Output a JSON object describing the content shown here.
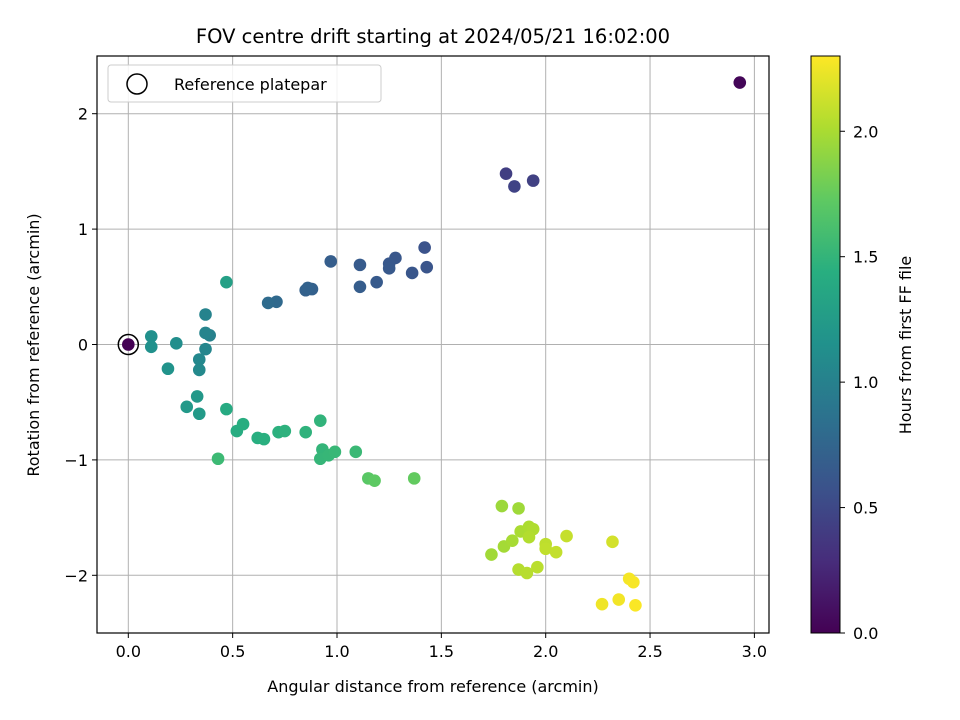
{
  "chart_data": {
    "type": "scatter",
    "title": "FOV centre drift starting at 2024/05/21 16:02:00",
    "xlabel": "Angular distance from reference (arcmin)",
    "ylabel": "Rotation from reference (arcmin)",
    "xlim": [
      -0.15,
      3.07
    ],
    "ylim": [
      -2.5,
      2.5
    ],
    "xticks": [
      0.0,
      0.5,
      1.0,
      1.5,
      2.0,
      2.5,
      3.0
    ],
    "xtick_labels": [
      "0.0",
      "0.5",
      "1.0",
      "1.5",
      "2.0",
      "2.5",
      "3.0"
    ],
    "yticks": [
      -2,
      -1,
      0,
      1,
      2
    ],
    "ytick_labels": [
      "−2",
      "−1",
      "0",
      "1",
      "2"
    ],
    "grid": true,
    "legend": {
      "location": "upper-left",
      "entries": [
        "Reference platepar"
      ]
    },
    "reference_point": {
      "x": 0.0,
      "y": 0.0
    },
    "colorbar": {
      "label": "Hours from first FF file",
      "range": [
        0.0,
        2.3
      ],
      "ticks": [
        0.0,
        0.5,
        1.0,
        1.5,
        2.0
      ],
      "tick_labels": [
        "0.0",
        "0.5",
        "1.0",
        "1.5",
        "2.0"
      ],
      "colormap": "viridis"
    },
    "points": [
      {
        "x": 0.0,
        "y": 0.0,
        "c": 0.0
      },
      {
        "x": 2.93,
        "y": 2.27,
        "c": 0.03
      },
      {
        "x": 1.81,
        "y": 1.48,
        "c": 0.42
      },
      {
        "x": 1.94,
        "y": 1.42,
        "c": 0.44
      },
      {
        "x": 1.85,
        "y": 1.37,
        "c": 0.46
      },
      {
        "x": 1.42,
        "y": 0.84,
        "c": 0.58
      },
      {
        "x": 1.43,
        "y": 0.67,
        "c": 0.6
      },
      {
        "x": 1.36,
        "y": 0.62,
        "c": 0.61
      },
      {
        "x": 1.28,
        "y": 0.75,
        "c": 0.62
      },
      {
        "x": 1.25,
        "y": 0.7,
        "c": 0.63
      },
      {
        "x": 1.25,
        "y": 0.66,
        "c": 0.64
      },
      {
        "x": 1.19,
        "y": 0.54,
        "c": 0.65
      },
      {
        "x": 1.11,
        "y": 0.69,
        "c": 0.66
      },
      {
        "x": 1.11,
        "y": 0.5,
        "c": 0.67
      },
      {
        "x": 0.97,
        "y": 0.72,
        "c": 0.68
      },
      {
        "x": 0.88,
        "y": 0.48,
        "c": 0.7
      },
      {
        "x": 0.85,
        "y": 0.47,
        "c": 0.71
      },
      {
        "x": 0.86,
        "y": 0.49,
        "c": 0.72
      },
      {
        "x": 0.71,
        "y": 0.37,
        "c": 0.78
      },
      {
        "x": 0.67,
        "y": 0.36,
        "c": 0.8
      },
      {
        "x": 0.39,
        "y": 0.08,
        "c": 1.0
      },
      {
        "x": 0.37,
        "y": 0.26,
        "c": 1.02
      },
      {
        "x": 0.37,
        "y": 0.1,
        "c": 1.03
      },
      {
        "x": 0.37,
        "y": -0.04,
        "c": 1.05
      },
      {
        "x": 0.34,
        "y": -0.13,
        "c": 1.07
      },
      {
        "x": 0.34,
        "y": -0.22,
        "c": 1.08
      },
      {
        "x": 0.23,
        "y": 0.01,
        "c": 1.12
      },
      {
        "x": 0.11,
        "y": 0.07,
        "c": 1.14
      },
      {
        "x": 0.11,
        "y": -0.02,
        "c": 1.15
      },
      {
        "x": 0.19,
        "y": -0.21,
        "c": 1.17
      },
      {
        "x": 0.33,
        "y": -0.45,
        "c": 1.22
      },
      {
        "x": 0.28,
        "y": -0.54,
        "c": 1.23
      },
      {
        "x": 0.34,
        "y": -0.6,
        "c": 1.24
      },
      {
        "x": 0.47,
        "y": 0.54,
        "c": 1.3
      },
      {
        "x": 0.47,
        "y": -0.56,
        "c": 1.4
      },
      {
        "x": 0.52,
        "y": -0.75,
        "c": 1.42
      },
      {
        "x": 0.55,
        "y": -0.69,
        "c": 1.43
      },
      {
        "x": 0.62,
        "y": -0.81,
        "c": 1.44
      },
      {
        "x": 0.65,
        "y": -0.82,
        "c": 1.45
      },
      {
        "x": 0.72,
        "y": -0.76,
        "c": 1.46
      },
      {
        "x": 0.75,
        "y": -0.75,
        "c": 1.47
      },
      {
        "x": 0.85,
        "y": -0.76,
        "c": 1.48
      },
      {
        "x": 0.92,
        "y": -0.66,
        "c": 1.49
      },
      {
        "x": 0.93,
        "y": -0.91,
        "c": 1.5
      },
      {
        "x": 0.92,
        "y": -0.99,
        "c": 1.51
      },
      {
        "x": 0.96,
        "y": -0.96,
        "c": 1.52
      },
      {
        "x": 0.99,
        "y": -0.93,
        "c": 1.53
      },
      {
        "x": 1.09,
        "y": -0.93,
        "c": 1.54
      },
      {
        "x": 0.43,
        "y": -0.99,
        "c": 1.55
      },
      {
        "x": 1.15,
        "y": -1.16,
        "c": 1.7
      },
      {
        "x": 1.18,
        "y": -1.18,
        "c": 1.72
      },
      {
        "x": 1.37,
        "y": -1.16,
        "c": 1.74
      },
      {
        "x": 1.79,
        "y": -1.4,
        "c": 1.95
      },
      {
        "x": 1.87,
        "y": -1.42,
        "c": 1.96
      },
      {
        "x": 1.74,
        "y": -1.82,
        "c": 1.97
      },
      {
        "x": 1.8,
        "y": -1.75,
        "c": 1.98
      },
      {
        "x": 1.84,
        "y": -1.7,
        "c": 1.99
      },
      {
        "x": 1.88,
        "y": -1.62,
        "c": 2.0
      },
      {
        "x": 1.92,
        "y": -1.58,
        "c": 2.01
      },
      {
        "x": 1.94,
        "y": -1.6,
        "c": 2.02
      },
      {
        "x": 1.92,
        "y": -1.67,
        "c": 2.03
      },
      {
        "x": 1.87,
        "y": -1.95,
        "c": 2.04
      },
      {
        "x": 1.91,
        "y": -1.98,
        "c": 2.05
      },
      {
        "x": 1.96,
        "y": -1.93,
        "c": 2.06
      },
      {
        "x": 2.0,
        "y": -1.73,
        "c": 2.07
      },
      {
        "x": 2.0,
        "y": -1.77,
        "c": 2.08
      },
      {
        "x": 2.05,
        "y": -1.8,
        "c": 2.09
      },
      {
        "x": 2.1,
        "y": -1.66,
        "c": 2.1
      },
      {
        "x": 2.32,
        "y": -1.71,
        "c": 2.15
      },
      {
        "x": 2.27,
        "y": -2.25,
        "c": 2.25
      },
      {
        "x": 2.35,
        "y": -2.21,
        "c": 2.26
      },
      {
        "x": 2.4,
        "y": -2.03,
        "c": 2.27
      },
      {
        "x": 2.42,
        "y": -2.06,
        "c": 2.28
      },
      {
        "x": 2.43,
        "y": -2.26,
        "c": 2.29
      }
    ]
  }
}
